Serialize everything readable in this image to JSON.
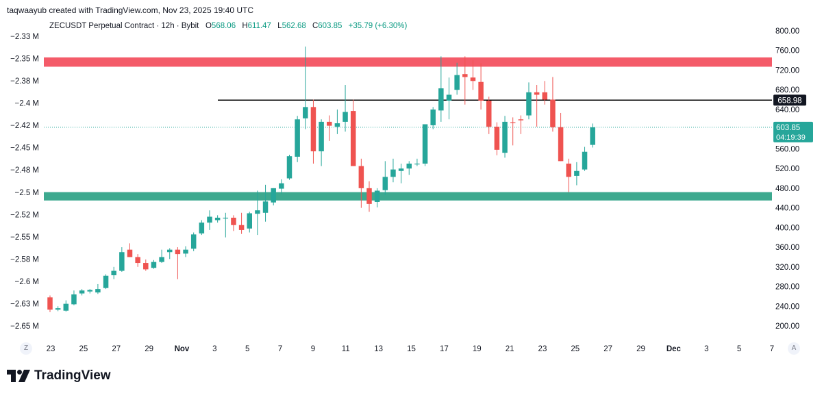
{
  "header": {
    "caption": "taqwaayub created with TradingView.com, Nov 23, 2025 19:40 UTC"
  },
  "legend": {
    "title": "ZECUSDT Perpetual Contract · 12h · Bybit",
    "o_key": "O",
    "o_val": "568.06",
    "h_key": "H",
    "h_val": "611.47",
    "l_key": "L",
    "l_val": "562.68",
    "c_key": "C",
    "c_val": "603.85",
    "change": "+35.79 (+6.30%)"
  },
  "brand": {
    "name": "TradingView"
  },
  "corner": {
    "left": "Z",
    "right": "A"
  },
  "colors": {
    "up": "#26a69a",
    "down": "#ef5350",
    "resistance": "#f45b69",
    "support": "#3da98f",
    "line": "#000000"
  },
  "chart_data": {
    "type": "candlestick",
    "timeframe": "12h",
    "y_right": {
      "ticks": [
        800,
        760,
        720,
        680,
        640,
        600,
        560,
        520,
        480,
        440,
        400,
        360,
        320,
        280,
        240,
        200
      ],
      "labels": [
        "800.00",
        "760.00",
        "720.00",
        "680.00",
        "640.00",
        "600.00",
        "560.00",
        "520.00",
        "480.00",
        "440.00",
        "400.00",
        "360.00",
        "320.00",
        "280.00",
        "240.00",
        "200.00"
      ]
    },
    "y_left": {
      "labels": [
        "−2.33 M",
        "−2.35 M",
        "−2.38 M",
        "−2.4 M",
        "−2.42 M",
        "−2.45 M",
        "−2.48 M",
        "−2.5 M",
        "−2.52 M",
        "−2.55 M",
        "−2.58 M",
        "−2.6 M",
        "−2.63 M",
        "−2.65 M"
      ]
    },
    "x_labels": [
      "23",
      "25",
      "27",
      "29",
      "Nov",
      "3",
      "5",
      "7",
      "9",
      "11",
      "13",
      "15",
      "17",
      "19",
      "21",
      "23",
      "25",
      "27",
      "29",
      "Dec",
      "3",
      "5",
      "7"
    ],
    "price_tags": [
      {
        "value": 658.98,
        "label": "658.98",
        "style": "dark"
      },
      {
        "value": 603.85,
        "label": "603.85",
        "sublabel": "04:19:39",
        "style": "green"
      }
    ],
    "zones": [
      {
        "name": "resistance",
        "low": 727,
        "high": 746
      },
      {
        "name": "support",
        "low": 455,
        "high": 472
      }
    ],
    "horizontal_line": {
      "value": 658.98
    },
    "candles": [
      {
        "o": 258,
        "h": 262,
        "l": 228,
        "c": 233
      },
      {
        "o": 233,
        "h": 240,
        "l": 230,
        "c": 236
      },
      {
        "o": 231,
        "h": 252,
        "l": 229,
        "c": 245
      },
      {
        "o": 244,
        "h": 272,
        "l": 242,
        "c": 264
      },
      {
        "o": 266,
        "h": 275,
        "l": 262,
        "c": 272
      },
      {
        "o": 270,
        "h": 275,
        "l": 266,
        "c": 273
      },
      {
        "o": 268,
        "h": 285,
        "l": 265,
        "c": 275
      },
      {
        "o": 277,
        "h": 305,
        "l": 275,
        "c": 302
      },
      {
        "o": 303,
        "h": 320,
        "l": 295,
        "c": 312
      },
      {
        "o": 312,
        "h": 360,
        "l": 310,
        "c": 350
      },
      {
        "o": 355,
        "h": 368,
        "l": 340,
        "c": 340
      },
      {
        "o": 340,
        "h": 346,
        "l": 320,
        "c": 328
      },
      {
        "o": 328,
        "h": 335,
        "l": 312,
        "c": 315
      },
      {
        "o": 318,
        "h": 334,
        "l": 316,
        "c": 330
      },
      {
        "o": 330,
        "h": 355,
        "l": 328,
        "c": 340
      },
      {
        "o": 350,
        "h": 358,
        "l": 336,
        "c": 355
      },
      {
        "o": 355,
        "h": 360,
        "l": 295,
        "c": 346
      },
      {
        "o": 347,
        "h": 362,
        "l": 340,
        "c": 355
      },
      {
        "o": 357,
        "h": 390,
        "l": 352,
        "c": 386
      },
      {
        "o": 388,
        "h": 415,
        "l": 385,
        "c": 410
      },
      {
        "o": 410,
        "h": 435,
        "l": 395,
        "c": 422
      },
      {
        "o": 415,
        "h": 425,
        "l": 410,
        "c": 420
      },
      {
        "o": 420,
        "h": 430,
        "l": 380,
        "c": 420
      },
      {
        "o": 420,
        "h": 425,
        "l": 393,
        "c": 405
      },
      {
        "o": 405,
        "h": 430,
        "l": 387,
        "c": 395
      },
      {
        "o": 398,
        "h": 432,
        "l": 390,
        "c": 429
      },
      {
        "o": 428,
        "h": 475,
        "l": 385,
        "c": 435
      },
      {
        "o": 430,
        "h": 487,
        "l": 412,
        "c": 453
      },
      {
        "o": 451,
        "h": 480,
        "l": 445,
        "c": 480
      },
      {
        "o": 479,
        "h": 498,
        "l": 468,
        "c": 490
      },
      {
        "o": 500,
        "h": 548,
        "l": 497,
        "c": 545
      },
      {
        "o": 544,
        "h": 627,
        "l": 533,
        "c": 620
      },
      {
        "o": 622,
        "h": 768,
        "l": 600,
        "c": 645
      },
      {
        "o": 645,
        "h": 660,
        "l": 530,
        "c": 555
      },
      {
        "o": 555,
        "h": 620,
        "l": 525,
        "c": 615
      },
      {
        "o": 615,
        "h": 628,
        "l": 576,
        "c": 607
      },
      {
        "o": 605,
        "h": 640,
        "l": 590,
        "c": 612
      },
      {
        "o": 615,
        "h": 690,
        "l": 595,
        "c": 635
      },
      {
        "o": 637,
        "h": 660,
        "l": 525,
        "c": 525
      },
      {
        "o": 525,
        "h": 540,
        "l": 440,
        "c": 480
      },
      {
        "o": 480,
        "h": 494,
        "l": 432,
        "c": 448
      },
      {
        "o": 452,
        "h": 480,
        "l": 441,
        "c": 475
      },
      {
        "o": 476,
        "h": 535,
        "l": 466,
        "c": 503
      },
      {
        "o": 503,
        "h": 540,
        "l": 492,
        "c": 518
      },
      {
        "o": 515,
        "h": 530,
        "l": 490,
        "c": 520
      },
      {
        "o": 520,
        "h": 535,
        "l": 507,
        "c": 530
      },
      {
        "o": 530,
        "h": 540,
        "l": 525,
        "c": 530
      },
      {
        "o": 530,
        "h": 610,
        "l": 525,
        "c": 610
      },
      {
        "o": 608,
        "h": 645,
        "l": 600,
        "c": 640
      },
      {
        "o": 638,
        "h": 748,
        "l": 615,
        "c": 683
      },
      {
        "o": 658,
        "h": 705,
        "l": 620,
        "c": 670
      },
      {
        "o": 680,
        "h": 735,
        "l": 670,
        "c": 710
      },
      {
        "o": 712,
        "h": 748,
        "l": 650,
        "c": 706
      },
      {
        "o": 705,
        "h": 740,
        "l": 680,
        "c": 698
      },
      {
        "o": 696,
        "h": 734,
        "l": 640,
        "c": 658
      },
      {
        "o": 658,
        "h": 666,
        "l": 590,
        "c": 605
      },
      {
        "o": 605,
        "h": 614,
        "l": 547,
        "c": 558
      },
      {
        "o": 552,
        "h": 627,
        "l": 542,
        "c": 615
      },
      {
        "o": 614,
        "h": 624,
        "l": 567,
        "c": 613
      },
      {
        "o": 620,
        "h": 628,
        "l": 590,
        "c": 618
      },
      {
        "o": 628,
        "h": 695,
        "l": 620,
        "c": 675
      },
      {
        "o": 675,
        "h": 690,
        "l": 605,
        "c": 670
      },
      {
        "o": 675,
        "h": 698,
        "l": 650,
        "c": 660
      },
      {
        "o": 660,
        "h": 706,
        "l": 595,
        "c": 604
      },
      {
        "o": 604,
        "h": 633,
        "l": 535,
        "c": 535
      },
      {
        "o": 530,
        "h": 540,
        "l": 472,
        "c": 503
      },
      {
        "o": 505,
        "h": 533,
        "l": 486,
        "c": 515
      },
      {
        "o": 518,
        "h": 564,
        "l": 515,
        "c": 554
      },
      {
        "o": 568.06,
        "h": 611.47,
        "l": 562.68,
        "c": 603.85
      }
    ]
  }
}
